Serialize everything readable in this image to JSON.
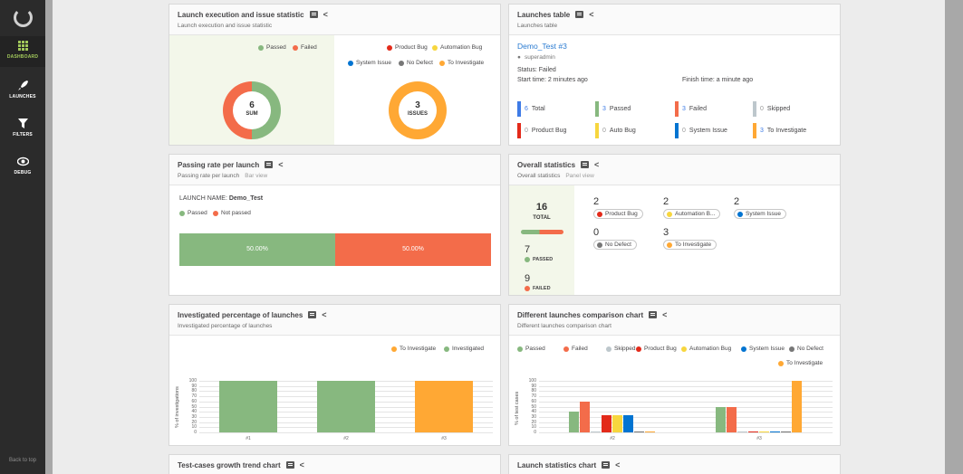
{
  "sidebar": {
    "items": [
      {
        "label": "DASHBOARD",
        "icon": "dashboard-icon"
      },
      {
        "label": "LAUNCHES",
        "icon": "rocket-icon"
      },
      {
        "label": "FILTERS",
        "icon": "filter-icon"
      },
      {
        "label": "DEBUG",
        "icon": "eye-icon"
      }
    ],
    "back_to_top": "Back to top"
  },
  "colors": {
    "passed": "#87b87f",
    "failed": "#f36c4a",
    "skipped": "#bdc7cc",
    "product_bug": "#e32a1a",
    "automation_bug": "#f7d63e",
    "system_issue": "#0274d1",
    "no_defect": "#777777",
    "to_investigate": "#ffa834"
  },
  "widgets": {
    "exec": {
      "title": "Launch execution and issue statistic",
      "subtitle": "Launch execution and issue statistic",
      "legend_left": [
        "Passed",
        "Failed"
      ],
      "legend_right_row1": [
        "Product Bug",
        "Automation Bug"
      ],
      "legend_right_row2": [
        "System Issue",
        "No Defect",
        "To Investigate"
      ],
      "sum_value": "6",
      "sum_label": "SUM",
      "issues_value": "3",
      "issues_label": "ISSUES"
    },
    "launches_table": {
      "title": "Launches table",
      "subtitle": "Launches table",
      "launch_name": "Demo_Test #3",
      "owner": "superadmin",
      "status": "Status: Failed",
      "start_time": "Start time: 2 minutes ago",
      "finish_time": "Finish time: a minute ago",
      "stats_row1": [
        {
          "num": "6",
          "label": "Total",
          "color": "#3e7be6"
        },
        {
          "num": "3",
          "label": "Passed",
          "color": "#87b87f"
        },
        {
          "num": "3",
          "label": "Failed",
          "color": "#f36c4a"
        },
        {
          "num": "0",
          "label": "Skipped",
          "color": "#bdc7cc"
        }
      ],
      "stats_row2": [
        {
          "num": "0",
          "label": "Product Bug",
          "color": "#e32a1a"
        },
        {
          "num": "0",
          "label": "Auto Bug",
          "color": "#f7d63e"
        },
        {
          "num": "0",
          "label": "System Issue",
          "color": "#0274d1"
        },
        {
          "num": "3",
          "label": "To Investigate",
          "color": "#ffa834"
        }
      ]
    },
    "passing_rate": {
      "title": "Passing rate per launch",
      "subtitle": "Passing rate per launch",
      "view": "Bar view",
      "launch_name_label": "LAUNCH NAME:",
      "launch_name": "Demo_Test",
      "legend": [
        "Passed",
        "Not passed"
      ],
      "passed_pct": "50.00%",
      "not_passed_pct": "50.00%"
    },
    "overall": {
      "title": "Overall statistics",
      "subtitle": "Overall statistics",
      "view": "Panel view",
      "total": "16",
      "total_label": "TOTAL",
      "passed": "7",
      "passed_label": "PASSED",
      "failed": "9",
      "failed_label": "FAILED",
      "defects": [
        {
          "num": "2",
          "label": "Product Bug",
          "color": "#e32a1a"
        },
        {
          "num": "2",
          "label": "Automation B...",
          "color": "#f7d63e"
        },
        {
          "num": "2",
          "label": "System Issue",
          "color": "#0274d1"
        },
        {
          "num": "0",
          "label": "No Defect",
          "color": "#777777"
        },
        {
          "num": "3",
          "label": "To Investigate",
          "color": "#ffa834"
        }
      ]
    },
    "investigated": {
      "title": "Investigated percentage of launches",
      "subtitle": "Investigated percentage of launches",
      "legend": [
        "To Investigate",
        "Investigated"
      ],
      "ylabel": "% of investigations"
    },
    "comparison": {
      "title": "Different launches comparison chart",
      "subtitle": "Different launches comparison chart",
      "legend": [
        "Passed",
        "Failed",
        "Skipped",
        "Product Bug",
        "Automation Bug",
        "System Issue",
        "No Defect",
        "To Investigate"
      ],
      "ylabel": "% of test cases"
    },
    "growth": {
      "title": "Test-cases growth trend chart"
    },
    "launch_stats": {
      "title": "Launch statistics chart"
    }
  },
  "chart_data": [
    {
      "type": "bar",
      "title": "Investigated percentage of launches",
      "ylabel": "% of investigations",
      "categories": [
        "#1",
        "#2",
        "#3"
      ],
      "yticks": [
        "0",
        "10",
        "20",
        "30",
        "40",
        "50",
        "60",
        "70",
        "80",
        "90",
        "100"
      ],
      "ylim": [
        0,
        100
      ],
      "series": [
        {
          "name": "Investigated",
          "color": "#87b87f",
          "values": [
            100,
            100,
            0
          ]
        },
        {
          "name": "To Investigate",
          "color": "#ffa834",
          "values": [
            0,
            0,
            100
          ]
        }
      ]
    },
    {
      "type": "bar",
      "title": "Different launches comparison chart",
      "ylabel": "% of test cases",
      "categories": [
        "#2",
        "#3"
      ],
      "yticks": [
        "0",
        "10",
        "20",
        "30",
        "40",
        "50",
        "60",
        "70",
        "80",
        "90",
        "100"
      ],
      "ylim": [
        0,
        100
      ],
      "series": [
        {
          "name": "Passed",
          "color": "#87b87f",
          "values": [
            40,
            50
          ]
        },
        {
          "name": "Failed",
          "color": "#f36c4a",
          "values": [
            60,
            50
          ]
        },
        {
          "name": "Skipped",
          "color": "#bdc7cc",
          "values": [
            0,
            0
          ]
        },
        {
          "name": "Product Bug",
          "color": "#e32a1a",
          "values": [
            33,
            0
          ]
        },
        {
          "name": "Automation Bug",
          "color": "#f7d63e",
          "values": [
            33,
            0
          ]
        },
        {
          "name": "System Issue",
          "color": "#0274d1",
          "values": [
            33,
            0
          ]
        },
        {
          "name": "No Defect",
          "color": "#777777",
          "values": [
            0,
            0
          ]
        },
        {
          "name": "To Investigate",
          "color": "#ffa834",
          "values": [
            0,
            100
          ]
        }
      ]
    }
  ]
}
